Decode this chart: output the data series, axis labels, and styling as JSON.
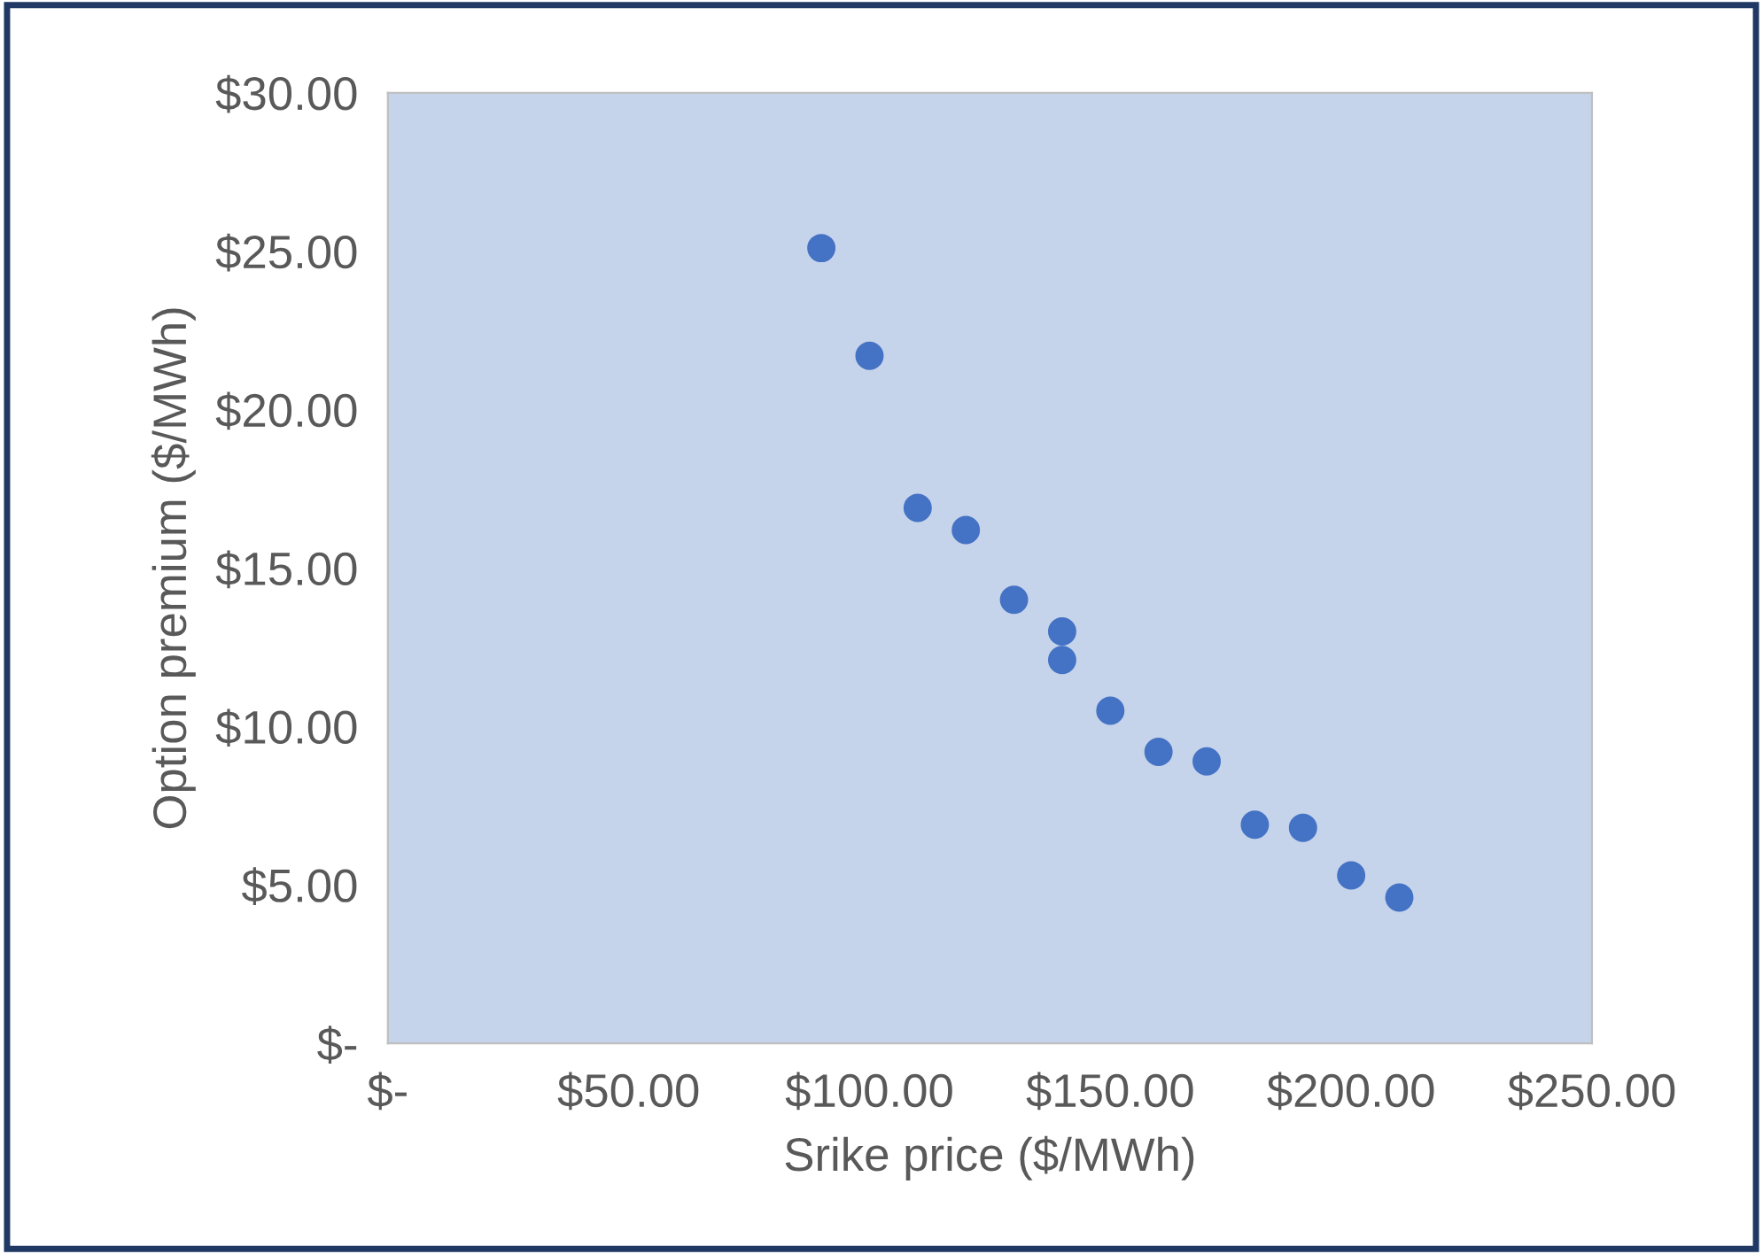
{
  "chart_data": {
    "type": "scatter",
    "xlabel": "Srike price ($/MWh)",
    "ylabel": "Option premium ($/MWh)",
    "x": [
      90,
      100,
      110,
      120,
      130,
      140,
      140,
      150,
      160,
      170,
      180,
      190,
      200,
      210
    ],
    "series": [
      {
        "color": "#4472c4",
        "values": [
          25.1,
          21.7,
          16.9,
          16.2,
          14.0,
          13.0,
          12.1,
          10.5,
          9.2,
          8.9,
          6.9,
          6.8,
          5.3,
          4.6
        ]
      }
    ],
    "xlim": [
      0,
      250
    ],
    "ylim": [
      0,
      30
    ],
    "xticks": [
      {
        "value": 0,
        "label": "$-"
      },
      {
        "value": 50,
        "label": "$50.00"
      },
      {
        "value": 100,
        "label": "$100.00"
      },
      {
        "value": 150,
        "label": "$150.00"
      },
      {
        "value": 200,
        "label": "$200.00"
      },
      {
        "value": 250,
        "label": "$250.00"
      }
    ],
    "yticks": [
      {
        "value": 0,
        "label": "$-"
      },
      {
        "value": 5,
        "label": "$5.00"
      },
      {
        "value": 10,
        "label": "$10.00"
      },
      {
        "value": 15,
        "label": "$15.00"
      },
      {
        "value": 20,
        "label": "$20.00"
      },
      {
        "value": 25,
        "label": "$25.00"
      },
      {
        "value": 30,
        "label": "$30.00"
      }
    ],
    "grid": false,
    "legend": false,
    "marker": "circle"
  }
}
